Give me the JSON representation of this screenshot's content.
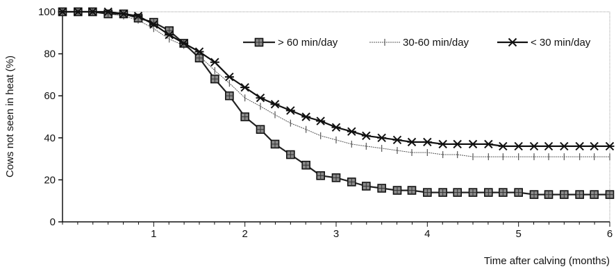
{
  "chart_data": {
    "type": "line",
    "title": "",
    "xlabel": "Time after calving (months)",
    "ylabel": "Cows not seen in heat (%)",
    "xlim": [
      0,
      6
    ],
    "ylim": [
      0,
      100
    ],
    "x_ticks": [
      1,
      2,
      3,
      4,
      5,
      6
    ],
    "y_ticks": [
      0,
      20,
      40,
      60,
      80,
      100
    ],
    "grid": false,
    "legend_position": "top-right",
    "series": [
      {
        "name": "> 60 min/day",
        "marker": "filled-square",
        "color": "#222222",
        "x": [
          0.0,
          0.17,
          0.33,
          0.5,
          0.67,
          0.83,
          1.0,
          1.17,
          1.33,
          1.5,
          1.67,
          1.83,
          2.0,
          2.17,
          2.33,
          2.5,
          2.67,
          2.83,
          3.0,
          3.17,
          3.33,
          3.5,
          3.67,
          3.83,
          4.0,
          4.17,
          4.33,
          4.5,
          4.67,
          4.83,
          5.0,
          5.17,
          5.33,
          5.5,
          5.67,
          5.83,
          6.0
        ],
        "values": [
          100,
          100,
          100,
          99,
          99,
          97,
          95,
          91,
          85,
          78,
          68,
          60,
          50,
          44,
          37,
          32,
          27,
          22,
          21,
          19,
          17,
          16,
          15,
          15,
          14,
          14,
          14,
          14,
          14,
          14,
          14,
          13,
          13,
          13,
          13,
          13,
          13
        ]
      },
      {
        "name": "30-60 min/day",
        "marker": "plus",
        "color": "#555555",
        "x": [
          0.0,
          0.17,
          0.33,
          0.5,
          0.67,
          0.83,
          1.0,
          1.17,
          1.33,
          1.5,
          1.67,
          1.83,
          2.0,
          2.17,
          2.33,
          2.5,
          2.67,
          2.83,
          3.0,
          3.17,
          3.33,
          3.5,
          3.67,
          3.83,
          4.0,
          4.17,
          4.33,
          4.5,
          4.67,
          4.83,
          5.0,
          5.17,
          5.33,
          5.5,
          5.67,
          5.83,
          6.0
        ],
        "values": [
          100,
          100,
          100,
          99,
          98,
          96,
          92,
          87,
          84,
          79,
          72,
          66,
          59,
          55,
          51,
          47,
          44,
          41,
          39,
          37,
          36,
          35,
          34,
          33,
          33,
          32,
          32,
          31,
          31,
          31,
          31,
          31,
          31,
          31,
          31,
          31,
          31
        ]
      },
      {
        "name": "< 30 min/day",
        "marker": "asterisk",
        "color": "#111111",
        "x": [
          0.0,
          0.17,
          0.33,
          0.5,
          0.67,
          0.83,
          1.0,
          1.17,
          1.33,
          1.5,
          1.67,
          1.83,
          2.0,
          2.17,
          2.33,
          2.5,
          2.67,
          2.83,
          3.0,
          3.17,
          3.33,
          3.5,
          3.67,
          3.83,
          4.0,
          4.17,
          4.33,
          4.5,
          4.67,
          4.83,
          5.0,
          5.17,
          5.33,
          5.5,
          5.67,
          5.83,
          6.0
        ],
        "values": [
          100,
          100,
          100,
          100,
          99,
          98,
          94,
          89,
          85,
          81,
          76,
          69,
          64,
          59,
          56,
          53,
          50,
          48,
          45,
          43,
          41,
          40,
          39,
          38,
          38,
          37,
          37,
          37,
          37,
          36,
          36,
          36,
          36,
          36,
          36,
          36,
          36
        ]
      }
    ]
  }
}
